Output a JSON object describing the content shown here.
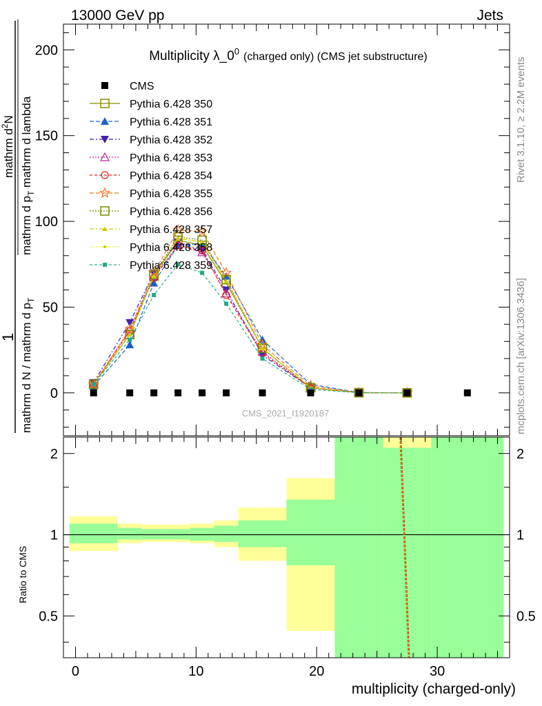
{
  "header": {
    "left": "13000 GeV pp",
    "right": "Jets"
  },
  "side_labels": {
    "rivet": "Rivet 3.1.10, ≥ 2.2M events",
    "mcplots": "mcplots.cern.ch [arXiv:1306.3436]"
  },
  "chart_data": [
    {
      "type": "line",
      "title": "Multiplicity λ_0",
      "title_sup": "0",
      "subtitle": "(charged only) (CMS jet substructure)",
      "watermark": "CMS_2021_I1920187",
      "ylabel_parts": {
        "one": "1",
        "den_left": "mathrm d N / mathrm d p",
        "den_sub": "T",
        "num": "mathrm d",
        "num_sup": "2",
        "num_N": "N",
        "lower_den_left": "mathrm d p",
        "lower_den_sub": "T",
        "lower_den_right": "mathrm d lambda"
      },
      "xlim": [
        -1,
        36
      ],
      "ylim": [
        -25,
        215
      ],
      "yticks": [
        0,
        50,
        100,
        150,
        200
      ],
      "grid": false,
      "legend_position": "top-left",
      "data_points": {
        "name": "CMS",
        "x": [
          1.5,
          4.5,
          6.5,
          8.5,
          10.5,
          12.5,
          15.5,
          19.5,
          23.5,
          27.5,
          32.5
        ],
        "y": [
          0,
          0,
          0,
          0,
          0,
          0,
          0,
          0,
          0,
          0,
          0
        ]
      },
      "x": [
        1.5,
        4.5,
        6.5,
        8.5,
        10.5,
        12.5,
        15.5,
        19.5,
        23.5,
        27.5
      ],
      "series": [
        {
          "name": "Pythia 6.428 350",
          "color": "#8b8b00",
          "dash": "",
          "marker": "square-open",
          "values": [
            5,
            34,
            68,
            89,
            86,
            64,
            26,
            3,
            0.1,
            0
          ]
        },
        {
          "name": "Pythia 6.428 351",
          "color": "#1c5fc8",
          "dash": "6,3",
          "marker": "triangle-up",
          "values": [
            4,
            28,
            64,
            86,
            87,
            68,
            31,
            5,
            0.2,
            0
          ]
        },
        {
          "name": "Pythia 6.428 352",
          "color": "#4422aa",
          "dash": "6,3,2,3",
          "marker": "triangle-down",
          "values": [
            6,
            41,
            70,
            88,
            83,
            60,
            22,
            3,
            0.1,
            0
          ]
        },
        {
          "name": "Pythia 6.428 353",
          "color": "#bb2299",
          "dash": "2,2",
          "marker": "triangle-open",
          "values": [
            5,
            37,
            68,
            86,
            82,
            58,
            24,
            3,
            0.1,
            0
          ]
        },
        {
          "name": "Pythia 6.428 354",
          "color": "#dd2222",
          "dash": "4,3",
          "marker": "circle-open",
          "values": [
            5,
            36,
            67,
            86,
            83,
            57,
            23,
            3,
            0.1,
            0
          ]
        },
        {
          "name": "Pythia 6.428 355",
          "color": "#ee7722",
          "dash": "6,3",
          "marker": "star",
          "values": [
            5,
            37,
            70,
            95,
            94,
            70,
            28,
            4,
            0.1,
            0
          ]
        },
        {
          "name": "Pythia 6.428 356",
          "color": "#778800",
          "dash": "2,2",
          "marker": "square-open",
          "values": [
            5,
            34,
            69,
            91,
            89,
            66,
            26,
            3,
            0.1,
            0
          ]
        },
        {
          "name": "Pythia 6.428 357",
          "color": "#cccc00",
          "dash": "6,3,2,3",
          "marker": "tri-small",
          "values": [
            5,
            34,
            68,
            90,
            88,
            65,
            26,
            3,
            0.1,
            0
          ]
        },
        {
          "name": "Pythia 6.428 358",
          "color": "#cccc00",
          "dash": "1,2",
          "marker": "dot-small",
          "values": [
            5,
            34,
            68,
            90,
            88,
            65,
            26,
            3,
            0.1,
            0
          ]
        },
        {
          "name": "Pythia 6.428 359",
          "color": "#22aa88",
          "dash": "4,3",
          "marker": "square-small",
          "values": [
            5,
            31,
            57,
            75,
            70,
            52,
            20,
            2,
            0.1,
            0
          ]
        }
      ]
    },
    {
      "type": "area",
      "ylabel": "Ratio to CMS",
      "xlabel": "multiplicity (charged-only)",
      "ylim": [
        0.35,
        2.3
      ],
      "yscale": "log",
      "xticks": [
        0,
        10,
        20,
        30
      ],
      "yticks": [
        0.5,
        1,
        2
      ],
      "reference_line": 1,
      "bands": [
        {
          "x_lo": -0.5,
          "x_hi": 3.5,
          "stat_lo": 0.93,
          "stat_hi": 1.1,
          "tot_lo": 0.87,
          "tot_hi": 1.17
        },
        {
          "x_lo": 3.5,
          "x_hi": 5.5,
          "stat_lo": 0.96,
          "stat_hi": 1.06,
          "tot_lo": 0.93,
          "tot_hi": 1.1
        },
        {
          "x_lo": 5.5,
          "x_hi": 7.5,
          "stat_lo": 0.96,
          "stat_hi": 1.05,
          "tot_lo": 0.94,
          "tot_hi": 1.09
        },
        {
          "x_lo": 7.5,
          "x_hi": 9.5,
          "stat_lo": 0.96,
          "stat_hi": 1.05,
          "tot_lo": 0.94,
          "tot_hi": 1.09
        },
        {
          "x_lo": 9.5,
          "x_hi": 11.5,
          "stat_lo": 0.95,
          "stat_hi": 1.06,
          "tot_lo": 0.93,
          "tot_hi": 1.1
        },
        {
          "x_lo": 11.5,
          "x_hi": 13.5,
          "stat_lo": 0.94,
          "stat_hi": 1.08,
          "tot_lo": 0.9,
          "tot_hi": 1.13
        },
        {
          "x_lo": 13.5,
          "x_hi": 17.5,
          "stat_lo": 0.9,
          "stat_hi": 1.13,
          "tot_lo": 0.8,
          "tot_hi": 1.26
        },
        {
          "x_lo": 17.5,
          "x_hi": 21.5,
          "stat_lo": 0.77,
          "stat_hi": 1.35,
          "tot_lo": 0.44,
          "tot_hi": 1.62
        },
        {
          "x_lo": 21.5,
          "x_hi": 25.5,
          "stat_lo": 0.3,
          "stat_hi": 2.5,
          "tot_lo": 0.3,
          "tot_hi": 2.5
        },
        {
          "x_lo": 25.5,
          "x_hi": 29.5,
          "stat_lo": 0.3,
          "stat_hi": 2.1,
          "tot_lo": 0.3,
          "tot_hi": 2.5
        },
        {
          "x_lo": 29.5,
          "x_hi": 35.5,
          "stat_lo": 0.3,
          "stat_hi": 2.5,
          "tot_lo": 0.3,
          "tot_hi": 2.5
        }
      ],
      "ratio_lines": [
        {
          "color": "#8b8b00",
          "x": [
            26.9,
            27.6
          ],
          "y": [
            2.3,
            0.35
          ]
        },
        {
          "color": "#dd2222",
          "x": [
            27.0,
            27.7
          ],
          "y": [
            2.3,
            0.35
          ]
        },
        {
          "color": "#ee7722",
          "x": [
            26.95,
            27.65
          ],
          "y": [
            2.3,
            0.35
          ]
        }
      ],
      "colors": {
        "stat_band": "#99ff99",
        "total_band": "#ffff99"
      }
    }
  ]
}
